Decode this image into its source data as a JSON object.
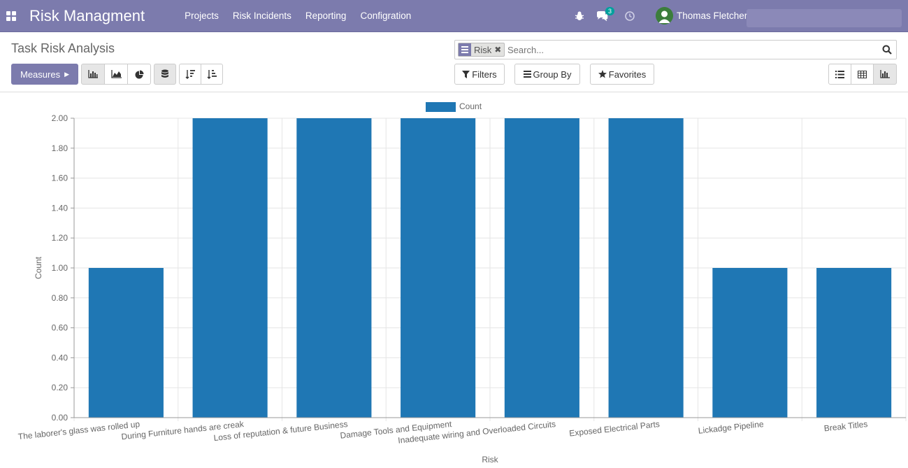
{
  "navbar": {
    "brand": "Risk Managment",
    "menu": [
      "Projects",
      "Risk Incidents",
      "Reporting",
      "Configration"
    ],
    "chat_count": "3",
    "user_name": "Thomas Fletcher",
    "color": "#7c7bad"
  },
  "control_panel": {
    "title": "Task Risk Analysis",
    "search": {
      "facet_label": "Risk",
      "placeholder": "Search..."
    },
    "measures_label": "Measures",
    "filters_label": "Filters",
    "group_by_label": "Group By",
    "favorites_label": "Favorites",
    "chart_modes": [
      "bar-chart-icon",
      "line-chart-icon",
      "pie-chart-icon"
    ],
    "active_mode": "bar",
    "views": [
      "list-view-icon",
      "pivot-view-icon",
      "graph-view-icon"
    ],
    "active_view": "graph"
  },
  "chart_data": {
    "type": "bar",
    "categories": [
      "The laborer's glass was rolled up",
      "During Furniture hands are creak",
      "Loss of reputation & future Business",
      "Damage Tools and Equipment",
      "Inadequate wiring and Overloaded Circuits",
      "Exposed Electrical Parts",
      "Lickadge Pipeline",
      "Break Titles"
    ],
    "series": [
      {
        "name": "Count",
        "values": [
          1,
          2,
          2,
          2,
          2,
          2,
          1,
          1
        ],
        "color": "#1f77b4"
      }
    ],
    "xlabel": "Risk",
    "ylabel": "Count",
    "ylim": [
      0,
      2
    ],
    "yticks": [
      "0.00",
      "0.20",
      "0.40",
      "0.60",
      "0.80",
      "1.00",
      "1.20",
      "1.40",
      "1.60",
      "1.80",
      "2.00"
    ],
    "grid": true,
    "legend": "top-center"
  }
}
